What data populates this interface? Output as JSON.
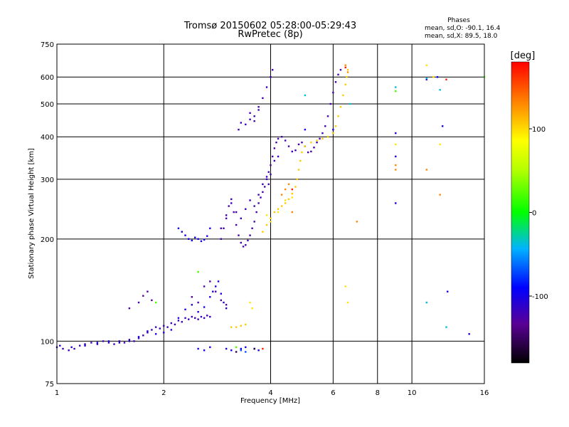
{
  "chart_data": {
    "type": "scatter",
    "title": "Tromsø 20150602 05:28:00-05:29:43",
    "subtitle": "RwPretec (8p)",
    "xlabel": "Frequency [MHz]",
    "ylabel": "Stationary phase Virtual Height [km]",
    "x_scale": "log",
    "y_scale": "log",
    "xlim": [
      1,
      16
    ],
    "ylim": [
      75,
      750
    ],
    "x_ticks": [
      1,
      2,
      4,
      6,
      8,
      10,
      16
    ],
    "x_tick_labels": [
      "1",
      "2",
      "4",
      "6",
      "8",
      "10",
      "16"
    ],
    "y_ticks": [
      75,
      100,
      200,
      300,
      400,
      500,
      600,
      750
    ],
    "y_tick_labels": [
      "75",
      "100",
      "200",
      "300",
      "400",
      "500",
      "600",
      "750"
    ],
    "grid": true,
    "stats": {
      "heading": "Phases",
      "o_line": "mean, sd,O: -90.1, 16.4",
      "x_line": "mean, sd,X:  89.5, 18.0"
    },
    "colorbar": {
      "label": "[deg]",
      "range": [
        -180,
        180
      ],
      "ticks": [
        100,
        0,
        -100
      ],
      "tick_labels": [
        "100",
        "0",
        "-100"
      ],
      "placement": "right"
    },
    "traces": [
      {
        "phase": -120,
        "points": [
          [
            1.0,
            96
          ],
          [
            1.04,
            95
          ],
          [
            1.08,
            94
          ],
          [
            1.12,
            95
          ],
          [
            1.16,
            97
          ],
          [
            1.2,
            98
          ],
          [
            1.25,
            99
          ],
          [
            1.3,
            98
          ],
          [
            1.35,
            100
          ],
          [
            1.4,
            99
          ],
          [
            1.45,
            98
          ],
          [
            1.5,
            100
          ],
          [
            1.55,
            99
          ],
          [
            1.6,
            101
          ],
          [
            1.65,
            100
          ],
          [
            1.7,
            102
          ],
          [
            1.75,
            104
          ],
          [
            1.8,
            106
          ],
          [
            1.85,
            108
          ],
          [
            1.9,
            110
          ],
          [
            1.95,
            109
          ],
          [
            2.0,
            111
          ],
          [
            2.05,
            110
          ],
          [
            2.1,
            113
          ],
          [
            2.15,
            112
          ],
          [
            2.2,
            115
          ],
          [
            2.25,
            114
          ],
          [
            2.3,
            117
          ],
          [
            2.35,
            116
          ],
          [
            2.4,
            118
          ],
          [
            2.45,
            117
          ],
          [
            2.5,
            116
          ],
          [
            2.55,
            118
          ],
          [
            2.6,
            117
          ],
          [
            2.65,
            119
          ],
          [
            2.7,
            118
          ]
        ]
      },
      {
        "phase": -105,
        "points": [
          [
            1.02,
            97
          ],
          [
            1.1,
            96
          ],
          [
            1.2,
            97
          ],
          [
            1.3,
            99
          ],
          [
            1.4,
            100
          ],
          [
            1.5,
            99
          ],
          [
            1.6,
            100
          ],
          [
            1.7,
            103
          ],
          [
            1.8,
            107
          ],
          [
            1.9,
            105
          ],
          [
            2.0,
            106
          ],
          [
            2.1,
            108
          ],
          [
            2.2,
            117
          ],
          [
            2.3,
            124
          ],
          [
            2.4,
            128
          ],
          [
            2.5,
            122
          ],
          [
            2.6,
            126
          ],
          [
            2.7,
            135
          ],
          [
            2.75,
            140
          ],
          [
            2.8,
            145
          ],
          [
            2.85,
            150
          ],
          [
            2.9,
            138
          ],
          [
            2.95,
            130
          ],
          [
            3.0,
            125
          ]
        ]
      },
      {
        "phase": -130,
        "points": [
          [
            1.6,
            125
          ],
          [
            1.7,
            130
          ],
          [
            1.75,
            136
          ],
          [
            1.8,
            140
          ],
          [
            1.85,
            132
          ],
          [
            2.4,
            135
          ],
          [
            2.5,
            130
          ],
          [
            2.6,
            145
          ],
          [
            2.7,
            150
          ],
          [
            2.8,
            140
          ],
          [
            2.9,
            132
          ],
          [
            3.0,
            128
          ]
        ]
      },
      {
        "phase": -100,
        "points": [
          [
            2.2,
            215
          ],
          [
            2.25,
            210
          ],
          [
            2.3,
            205
          ],
          [
            2.35,
            200
          ],
          [
            2.4,
            198
          ],
          [
            2.45,
            202
          ],
          [
            2.5,
            200
          ],
          [
            2.55,
            197
          ],
          [
            2.6,
            199
          ],
          [
            2.65,
            204
          ],
          [
            2.7,
            215
          ]
        ]
      },
      {
        "phase": -125,
        "points": [
          [
            2.9,
            200
          ],
          [
            2.95,
            215
          ],
          [
            3.0,
            230
          ],
          [
            3.05,
            250
          ],
          [
            3.1,
            262
          ],
          [
            3.15,
            240
          ],
          [
            3.2,
            220
          ],
          [
            3.25,
            205
          ],
          [
            3.3,
            195
          ],
          [
            3.35,
            190
          ],
          [
            3.4,
            192
          ],
          [
            3.45,
            198
          ],
          [
            3.5,
            205
          ],
          [
            3.55,
            215
          ],
          [
            3.6,
            225
          ],
          [
            3.65,
            240
          ],
          [
            3.7,
            255
          ],
          [
            3.75,
            265
          ],
          [
            3.8,
            275
          ],
          [
            3.85,
            285
          ],
          [
            3.9,
            300
          ],
          [
            3.95,
            315
          ],
          [
            4.0,
            330
          ],
          [
            4.05,
            350
          ],
          [
            4.1,
            370
          ],
          [
            4.15,
            385
          ],
          [
            4.2,
            395
          ],
          [
            4.3,
            400
          ],
          [
            4.4,
            390
          ],
          [
            4.5,
            375
          ],
          [
            4.6,
            362
          ],
          [
            4.7,
            365
          ],
          [
            4.8,
            380
          ],
          [
            4.9,
            385
          ],
          [
            5.0,
            375
          ],
          [
            5.1,
            360
          ],
          [
            5.2,
            362
          ],
          [
            5.3,
            372
          ],
          [
            5.4,
            385
          ],
          [
            5.5,
            395
          ],
          [
            5.6,
            410
          ],
          [
            5.7,
            430
          ],
          [
            5.8,
            460
          ],
          [
            5.9,
            500
          ],
          [
            6.0,
            540
          ],
          [
            6.1,
            580
          ],
          [
            6.2,
            610
          ],
          [
            6.3,
            630
          ]
        ]
      },
      {
        "phase": -120,
        "points": [
          [
            2.9,
            215
          ],
          [
            3.0,
            235
          ],
          [
            3.1,
            255
          ],
          [
            3.2,
            240
          ],
          [
            3.3,
            230
          ],
          [
            3.4,
            245
          ],
          [
            3.5,
            260
          ],
          [
            3.6,
            250
          ],
          [
            3.7,
            270
          ],
          [
            3.8,
            290
          ],
          [
            3.9,
            305
          ],
          [
            3.95,
            290
          ],
          [
            4.0,
            310
          ],
          [
            4.1,
            340
          ],
          [
            4.2,
            350
          ]
        ]
      },
      {
        "phase": -120,
        "points": [
          [
            3.25,
            420
          ],
          [
            3.3,
            440
          ],
          [
            3.4,
            435
          ],
          [
            3.5,
            450
          ],
          [
            3.6,
            460
          ],
          [
            3.7,
            490
          ],
          [
            3.8,
            520
          ],
          [
            3.9,
            560
          ],
          [
            4.0,
            600
          ],
          [
            4.05,
            630
          ],
          [
            3.6,
            445
          ],
          [
            3.5,
            470
          ],
          [
            3.7,
            480
          ]
        ]
      },
      {
        "phase": 105,
        "points": [
          [
            3.1,
            110
          ],
          [
            3.2,
            110
          ],
          [
            3.3,
            111
          ],
          [
            3.4,
            112
          ],
          [
            3.8,
            210
          ],
          [
            3.9,
            220
          ],
          [
            4.0,
            230
          ],
          [
            4.1,
            240
          ],
          [
            4.2,
            245
          ],
          [
            4.3,
            250
          ],
          [
            4.4,
            255
          ],
          [
            4.5,
            262
          ],
          [
            4.6,
            272
          ],
          [
            4.7,
            285
          ],
          [
            4.75,
            300
          ],
          [
            4.8,
            320
          ],
          [
            4.85,
            340
          ],
          [
            4.9,
            360
          ],
          [
            5.0,
            375
          ],
          [
            5.2,
            385
          ],
          [
            5.4,
            390
          ],
          [
            5.6,
            395
          ],
          [
            5.8,
            400
          ],
          [
            6.0,
            410
          ],
          [
            6.1,
            430
          ],
          [
            6.2,
            460
          ],
          [
            6.3,
            490
          ],
          [
            6.4,
            530
          ],
          [
            6.5,
            570
          ],
          [
            6.55,
            600
          ],
          [
            6.6,
            630
          ]
        ]
      },
      {
        "phase": 95,
        "points": [
          [
            3.5,
            130
          ],
          [
            3.55,
            125
          ],
          [
            3.9,
            235
          ],
          [
            4.0,
            225
          ],
          [
            4.2,
            240
          ],
          [
            4.4,
            260
          ],
          [
            4.6,
            265
          ],
          [
            6.5,
            145
          ],
          [
            6.6,
            130
          ],
          [
            9.0,
            380
          ],
          [
            11.0,
            650
          ],
          [
            11.5,
            600
          ],
          [
            12.0,
            380
          ]
        ]
      },
      {
        "phase": 130,
        "points": [
          [
            4.3,
            270
          ],
          [
            4.4,
            280
          ],
          [
            4.5,
            290
          ],
          [
            4.6,
            240
          ],
          [
            6.5,
            650
          ],
          [
            6.6,
            620
          ],
          [
            7.0,
            225
          ],
          [
            9.0,
            330
          ],
          [
            9.0,
            320
          ],
          [
            11.0,
            320
          ],
          [
            12.0,
            270
          ]
        ]
      },
      {
        "phase": 170,
        "points": [
          [
            3.8,
            95
          ],
          [
            6.5,
            640
          ],
          [
            4.6,
            280
          ],
          [
            12.5,
            590
          ]
        ]
      },
      {
        "phase": -100,
        "points": [
          [
            3.0,
            95
          ],
          [
            3.1,
            94
          ],
          [
            3.3,
            95
          ],
          [
            3.4,
            96
          ],
          [
            3.6,
            95
          ],
          [
            3.7,
            94
          ],
          [
            2.5,
            95
          ],
          [
            2.6,
            94
          ],
          [
            2.7,
            96
          ],
          [
            5.0,
            420
          ],
          [
            6.0,
            420
          ],
          [
            9.0,
            410
          ],
          [
            9.0,
            350
          ],
          [
            11.0,
            590
          ],
          [
            11.8,
            600
          ],
          [
            12.2,
            430
          ],
          [
            12.6,
            140
          ],
          [
            14.5,
            105
          ],
          [
            9.0,
            255
          ]
        ]
      },
      {
        "phase": -40,
        "points": [
          [
            5.0,
            530
          ],
          [
            6.7,
            500
          ],
          [
            9.0,
            560
          ],
          [
            11.0,
            595
          ],
          [
            12.0,
            550
          ],
          [
            12.5,
            110
          ],
          [
            11.0,
            130
          ]
        ]
      },
      {
        "phase": 20,
        "points": [
          [
            9.0,
            545
          ],
          [
            3.2,
            96
          ],
          [
            2.5,
            160
          ],
          [
            1.9,
            130
          ],
          [
            16.0,
            600
          ]
        ]
      },
      {
        "phase": -160,
        "points": [
          [
            3.2,
            93
          ],
          [
            3.6,
            95
          ]
        ]
      },
      {
        "phase": -70,
        "points": [
          [
            3.4,
            93
          ],
          [
            3.3,
            94
          ]
        ]
      }
    ]
  }
}
